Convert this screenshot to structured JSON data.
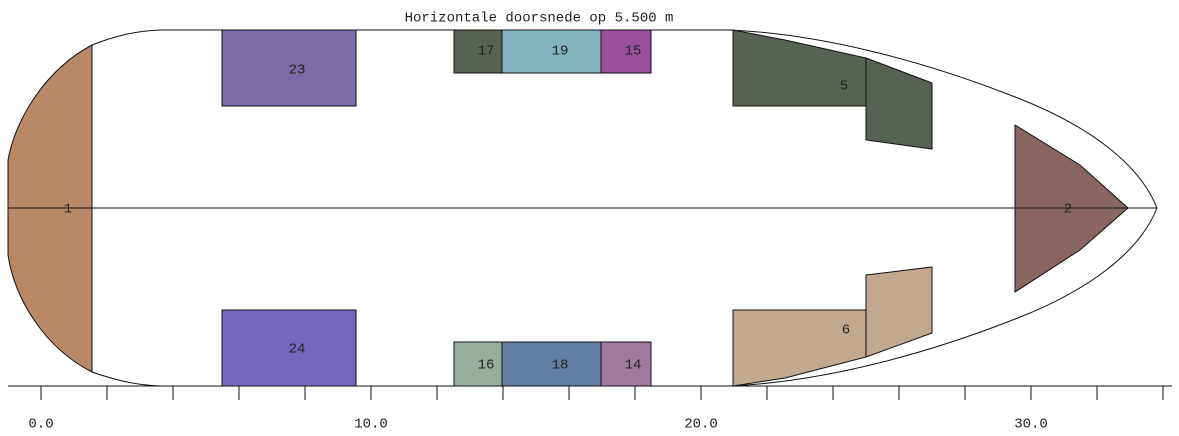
{
  "title": "Horizontale doorsnede op 5.500 m",
  "tanks": [
    {
      "label": "1"
    },
    {
      "label": "2"
    },
    {
      "label": "23"
    },
    {
      "label": "24"
    },
    {
      "label": "17"
    },
    {
      "label": "19"
    },
    {
      "label": "15"
    },
    {
      "label": "16"
    },
    {
      "label": "18"
    },
    {
      "label": "14"
    },
    {
      "label": "5"
    },
    {
      "label": "6"
    }
  ],
  "axis": {
    "labels": [
      "0.0",
      "10.0",
      "20.0",
      "30.0"
    ]
  }
}
